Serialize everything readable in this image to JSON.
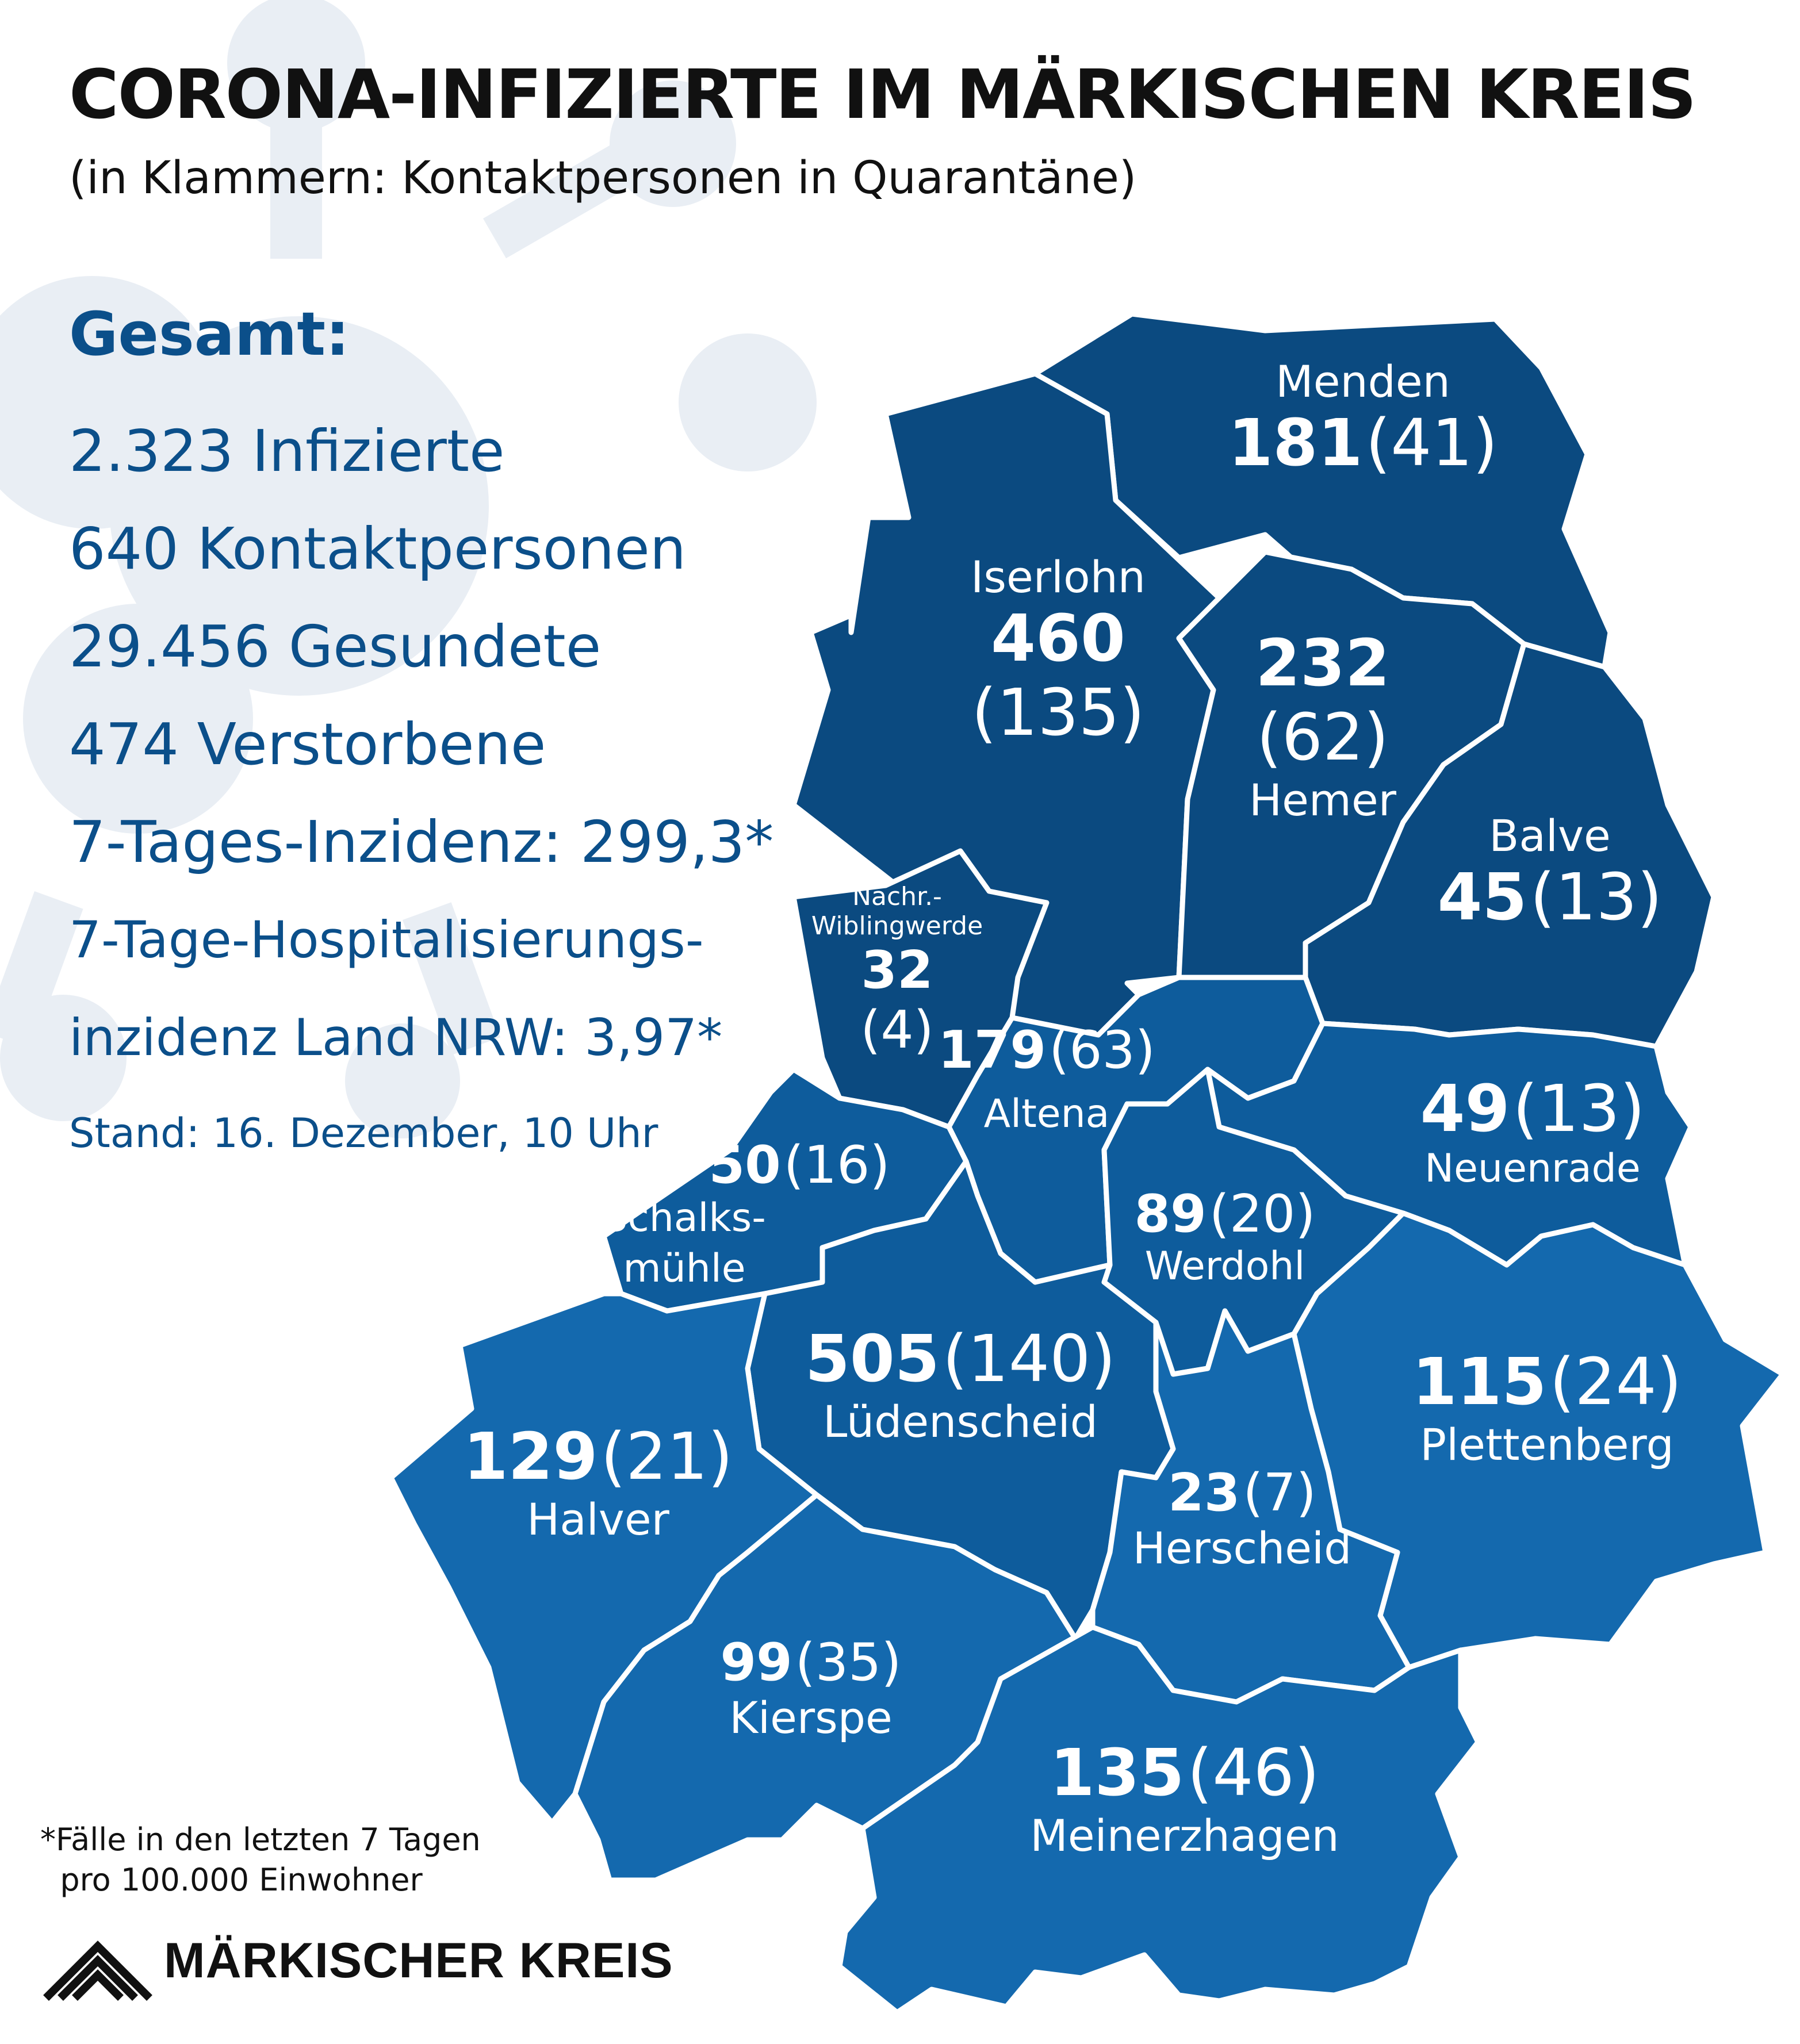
{
  "title": "CORONA-INFIZIERTE IM MÄRKISCHEN KREIS",
  "subtitle": "(in Klammern: Kontaktpersonen in Quarantäne)",
  "summary": {
    "heading": "Gesamt:",
    "infected": "2.323 Infizierte",
    "contacts": "640 Kontaktpersonen",
    "recovered": "29.456 Gesundete",
    "deceased": "474 Verstorbene",
    "incidence": "7-Tages-Inzidenz: 299,3*",
    "hosp_line1": "7-Tage-Hospitalisierungs-",
    "hosp_line2": "inzidenz Land NRW: 3,97*",
    "stand": "Stand: 16. Dezember, 10 Uhr"
  },
  "footnote": "*Fälle in den letzten 7 Tagen\n  pro 100.000 Einwohner",
  "logo_text": "MÄRKISCHER KREIS",
  "colors": {
    "dark": "#0b4a80",
    "mid": "#0e5c9c",
    "light": "#1469ae",
    "border": "#ffffff",
    "text_blue": "#0b4f8a",
    "virus_bg": "#e9eef4"
  },
  "districts": {
    "menden": {
      "name": "Menden",
      "infected": "181",
      "contacts": "(41)"
    },
    "iserlohn": {
      "name": "Iserlohn",
      "infected": "460",
      "contacts": "(135)"
    },
    "hemer": {
      "name": "Hemer",
      "infected": "232",
      "contacts": "(62)"
    },
    "balve": {
      "name": "Balve",
      "infected": "45",
      "contacts": "(13)"
    },
    "nachrodt": {
      "name_line1": "Nachr.-",
      "name_line2": "Wiblingwerde",
      "infected": "32",
      "contacts": "(4)"
    },
    "altena": {
      "name": "Altena",
      "infected": "179",
      "contacts": "(63)"
    },
    "neuenrade": {
      "name": "Neuenrade",
      "infected": "49",
      "contacts": "(13)"
    },
    "schalksmuehle": {
      "name_line1": "Schalks-",
      "name_line2": "mühle",
      "infected": "50",
      "contacts": "(16)"
    },
    "werdohl": {
      "name": "Werdohl",
      "infected": "89",
      "contacts": "(20)"
    },
    "luedenscheid": {
      "name": "Lüdenscheid",
      "infected": "505",
      "contacts": "(140)"
    },
    "plettenberg": {
      "name": "Plettenberg",
      "infected": "115",
      "contacts": "(24)"
    },
    "halver": {
      "name": "Halver",
      "infected": "129",
      "contacts": "(21)"
    },
    "herscheid": {
      "name": "Herscheid",
      "infected": "23",
      "contacts": "(7)"
    },
    "kierspe": {
      "name": "Kierspe",
      "infected": "99",
      "contacts": "(35)"
    },
    "meinerzhagen": {
      "name": "Meinerzhagen",
      "infected": "135",
      "contacts": "(46)"
    }
  }
}
